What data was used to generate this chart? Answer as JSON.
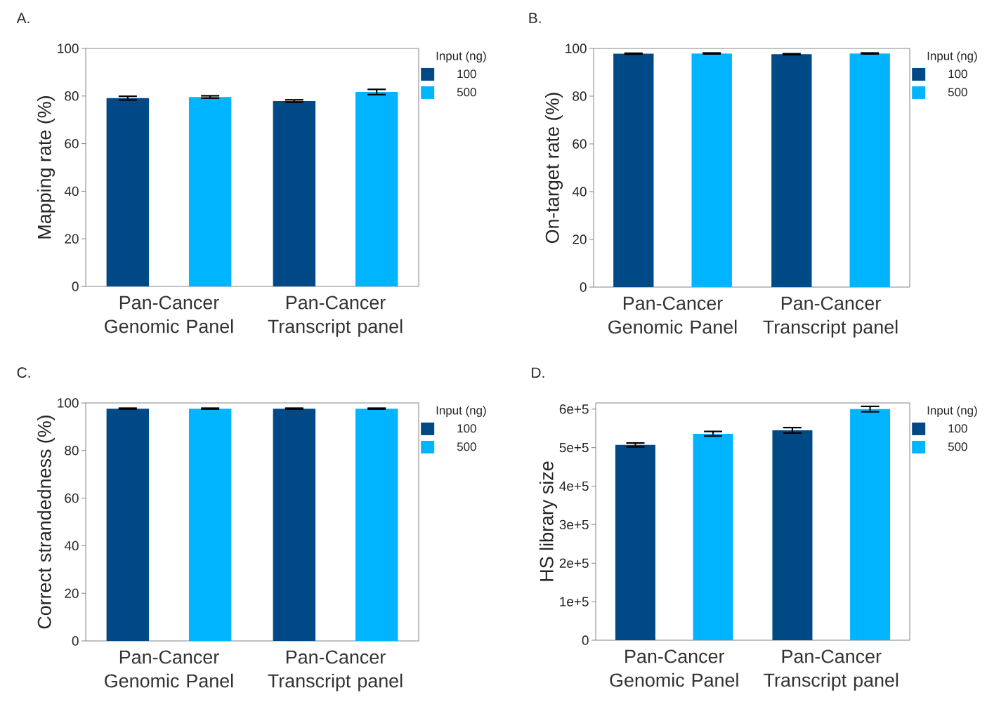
{
  "chart_data": [
    {
      "type": "bar",
      "title": "A.",
      "ylabel": "Mapping rate (%)",
      "categories": [
        "Pan-Cancer Genomic Panel",
        "Pan-Cancer Transcript panel"
      ],
      "legend_title": "Input (ng)",
      "legend": "top right",
      "ylim": [
        0,
        100
      ],
      "yticks": [
        0,
        20,
        40,
        60,
        80,
        100
      ],
      "series": [
        {
          "name": "100",
          "color": "#004987",
          "values": [
            79.1,
            77.9
          ],
          "errors": [
            0.8,
            0.5
          ]
        },
        {
          "name": "500",
          "color": "#00b4ff",
          "values": [
            79.6,
            81.7
          ],
          "errors": [
            0.5,
            1.1
          ]
        }
      ]
    },
    {
      "type": "bar",
      "title": "B.",
      "ylabel": "On-target rate (%)",
      "categories": [
        "Pan-Cancer Genomic Panel",
        "Pan-Cancer Transcript panel"
      ],
      "legend_title": "Input (ng)",
      "legend": "top right",
      "ylim": [
        0,
        100
      ],
      "yticks": [
        0,
        20,
        40,
        60,
        80,
        100
      ],
      "series": [
        {
          "name": "100",
          "color": "#004987",
          "values": [
            97.8,
            97.6
          ],
          "errors": [
            0.2,
            0.2
          ]
        },
        {
          "name": "500",
          "color": "#00b4ff",
          "values": [
            97.9,
            97.9
          ],
          "errors": [
            0.2,
            0.2
          ]
        }
      ]
    },
    {
      "type": "bar",
      "title": "C.",
      "ylabel": "Correct strandedness (%)",
      "categories": [
        "Pan-Cancer Genomic Panel",
        "Pan-Cancer Transcript panel"
      ],
      "legend_title": "Input (ng)",
      "legend": "top right",
      "ylim": [
        0,
        100
      ],
      "yticks": [
        0,
        20,
        40,
        60,
        80,
        100
      ],
      "series": [
        {
          "name": "100",
          "color": "#004987",
          "values": [
            97.6,
            97.6
          ],
          "errors": [
            0.2,
            0.2
          ]
        },
        {
          "name": "500",
          "color": "#00b4ff",
          "values": [
            97.6,
            97.6
          ],
          "errors": [
            0.2,
            0.2
          ]
        }
      ]
    },
    {
      "type": "bar",
      "title": "D.",
      "ylabel": "HS library size",
      "categories": [
        "Pan-Cancer Genomic Panel",
        "Pan-Cancer Transcript panel"
      ],
      "legend_title": "Input (ng)",
      "legend": "top right",
      "ylim": [
        0,
        616000
      ],
      "yticks": [
        0,
        {
          "value": 100000,
          "label": "1e+5"
        },
        {
          "value": 200000,
          "label": "2e+5"
        },
        {
          "value": 300000,
          "label": "3e+5"
        },
        {
          "value": 400000,
          "label": "4e+5"
        },
        {
          "value": 500000,
          "label": "5e+5"
        },
        {
          "value": 600000,
          "label": "6e+5"
        }
      ],
      "series": [
        {
          "name": "100",
          "color": "#004987",
          "values": [
            507000,
            545000
          ],
          "errors": [
            5000,
            7000
          ]
        },
        {
          "name": "500",
          "color": "#00b4ff",
          "values": [
            536000,
            600000
          ],
          "errors": [
            6000,
            7000
          ]
        }
      ]
    }
  ]
}
